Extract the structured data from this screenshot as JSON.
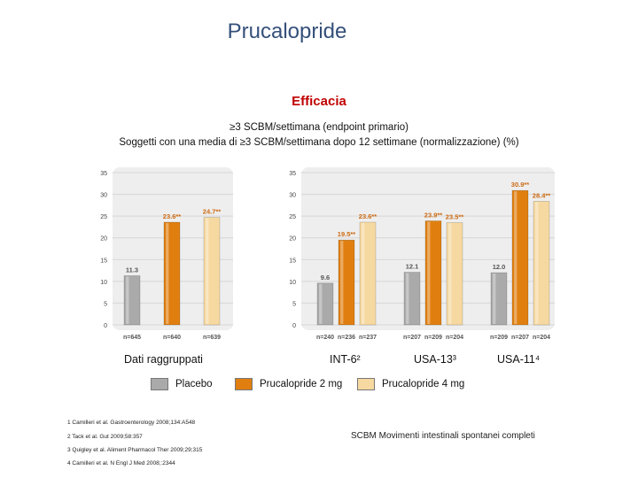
{
  "title": "Prucalopride",
  "subtitle": "Efficacia",
  "caption_line1": "≥3 SCBM/settimana (endpoint primario)",
  "caption_line2": "Soggetti con una media di ≥3 SCBM/settimana dopo 12 settimane (normalizzazione) (%)",
  "colors": {
    "placebo": "#aaaaaa",
    "pru2": "#e07f10",
    "pru4": "#f6d9a0",
    "label_accent": "#cc6a12",
    "label_gray": "#555555"
  },
  "chart_data": [
    {
      "type": "bar",
      "group_labels": [
        "Dati raggruppati"
      ],
      "ylim": [
        0,
        35
      ],
      "yticks": [
        "0",
        "5",
        "10",
        "15",
        "20",
        "25",
        "30",
        "35"
      ],
      "categories": [
        "Placebo",
        "Prucalopride 2 mg",
        "Prucalopride 4 mg"
      ],
      "values": [
        11.3,
        23.6,
        24.7
      ],
      "data_labels": [
        "11.3",
        "23.6**",
        "24.7**"
      ],
      "n_labels": [
        "n=645",
        "n=640",
        "n=639"
      ]
    },
    {
      "type": "bar",
      "group_labels": [
        "INT-6²",
        "USA-13³",
        "USA-11⁴"
      ],
      "ylim": [
        0,
        35
      ],
      "yticks": [
        "0",
        "5",
        "10",
        "15",
        "20",
        "25",
        "30",
        "35"
      ],
      "series": [
        {
          "name": "Placebo",
          "values": [
            9.6,
            12.1,
            12.0
          ],
          "labels": [
            "9.6",
            "12.1",
            "12.0"
          ]
        },
        {
          "name": "Prucalopride 2 mg",
          "values": [
            19.5,
            23.9,
            30.9
          ],
          "labels": [
            "19.5**",
            "23.9**",
            "30.9**"
          ]
        },
        {
          "name": "Prucalopride 4 mg",
          "values": [
            23.6,
            23.5,
            28.4
          ],
          "labels": [
            "23.6**",
            "23.5**",
            "28.4**"
          ]
        }
      ],
      "n_labels": [
        "n=240",
        "n=236",
        "n=237",
        "n=207",
        "n=209",
        "n=204",
        "n=209",
        "n=207",
        "n=204"
      ]
    }
  ],
  "legend": [
    {
      "label": "Placebo",
      "color_key": "placebo"
    },
    {
      "label": "Prucalopride 2 mg",
      "color_key": "pru2"
    },
    {
      "label": "Prucalopride 4 mg",
      "color_key": "pru4"
    }
  ],
  "references": [
    "1 Camilleri et al. Gastroenterology 2008;134:A548",
    "2 Tack et al. Gut 2009;58:357",
    "3 Quigley et al. Aliment Pharmacol Ther 2009;29;315",
    "4 Camilleri et al. N Engl J Med 2008;:2344"
  ],
  "note": "SCBM Movimenti intestinali spontanei completi"
}
